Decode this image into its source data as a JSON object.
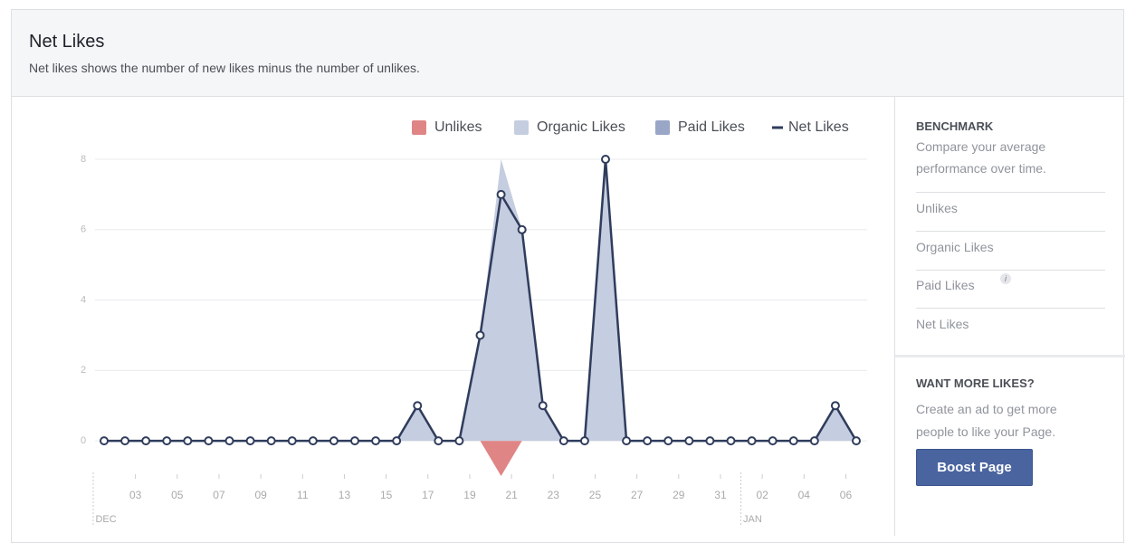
{
  "header": {
    "title": "Net Likes",
    "subtitle": "Net likes shows the number of new likes minus the number of unlikes."
  },
  "chart_data": {
    "type": "area",
    "categories": [
      null,
      null,
      "03",
      null,
      "05",
      null,
      "07",
      null,
      "09",
      null,
      "11",
      null,
      "13",
      null,
      "15",
      null,
      "17",
      null,
      "19",
      null,
      "21",
      null,
      "23",
      null,
      "25",
      null,
      "27",
      null,
      "29",
      null,
      "31",
      null,
      "02",
      null,
      "04",
      null,
      "06"
    ],
    "month_labels": [
      "DEC",
      "JAN"
    ],
    "series": [
      {
        "name": "Unlikes",
        "color": "#e08585",
        "style": "area",
        "values": [
          0,
          0,
          0,
          0,
          0,
          0,
          0,
          0,
          0,
          0,
          0,
          0,
          0,
          0,
          0,
          0,
          0,
          0,
          0,
          -1,
          0,
          0,
          0,
          0,
          0,
          0,
          0,
          0,
          0,
          0,
          0,
          0,
          0,
          0,
          0,
          0,
          0
        ]
      },
      {
        "name": "Organic Likes",
        "color": "#c5cde0",
        "style": "area",
        "values": [
          0,
          0,
          0,
          0,
          0,
          0,
          0,
          0,
          0,
          0,
          0,
          0,
          0,
          0,
          0,
          1,
          0,
          0,
          3,
          8,
          6,
          1,
          0,
          0,
          8,
          0,
          0,
          0,
          0,
          0,
          0,
          0,
          0,
          0,
          0,
          1,
          0
        ]
      },
      {
        "name": "Paid Likes",
        "color": "#9aa6c6",
        "style": "area",
        "values": [
          0,
          0,
          0,
          0,
          0,
          0,
          0,
          0,
          0,
          0,
          0,
          0,
          0,
          0,
          0,
          0,
          0,
          0,
          0,
          0,
          0,
          0,
          0,
          0,
          0,
          0,
          0,
          0,
          0,
          0,
          0,
          0,
          0,
          0,
          0,
          0,
          0
        ]
      },
      {
        "name": "Net Likes",
        "color": "#2f3c5c",
        "style": "line",
        "values": [
          0,
          0,
          0,
          0,
          0,
          0,
          0,
          0,
          0,
          0,
          0,
          0,
          0,
          0,
          0,
          1,
          0,
          0,
          3,
          7,
          6,
          1,
          0,
          0,
          8,
          0,
          0,
          0,
          0,
          0,
          0,
          0,
          0,
          0,
          0,
          1,
          0
        ]
      }
    ],
    "ylim": [
      -1,
      8
    ],
    "yticks": [
      0,
      2,
      4,
      6,
      8
    ],
    "grid": true,
    "legend": "top-right"
  },
  "sidebar": {
    "benchmark": {
      "title": "BENCHMARK",
      "text": [
        "Compare your average",
        "performance over time."
      ],
      "items": [
        "Unlikes",
        "Organic Likes",
        "Paid Likes",
        "Net Likes"
      ]
    },
    "promo": {
      "title": "WANT MORE LIKES?",
      "text": [
        "Create an ad to get more",
        "people to like your Page."
      ],
      "button": "Boost Page"
    }
  }
}
